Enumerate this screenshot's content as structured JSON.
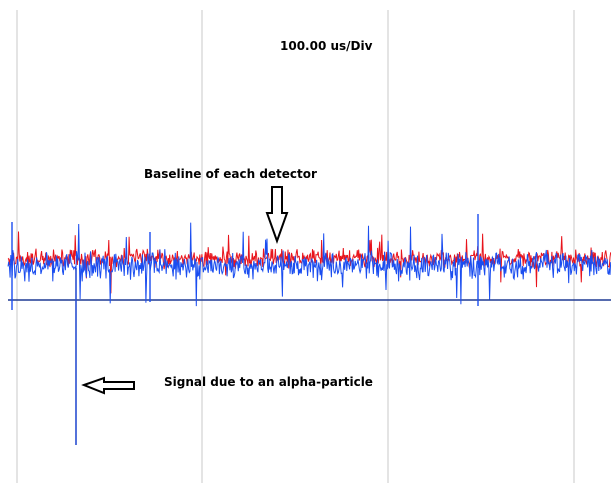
{
  "chart_data": {
    "type": "line",
    "timebase": "100.00 us/Div",
    "series": [
      {
        "color": "#e8141c",
        "level": 0.02,
        "amplitude": 0.08
      },
      {
        "color": "#1a4df0",
        "level": -0.02,
        "amplitude": 0.12
      }
    ],
    "annotations": [
      {
        "text": "Baseline of each detector",
        "arrow": "down"
      },
      {
        "text": "Signal due to an alpha-particle",
        "arrow": "left"
      }
    ],
    "grid": true
  },
  "colors": {
    "grid": "#c8c8c8",
    "reference_line": "#1f3a93",
    "pulse": "#2a4fd0"
  }
}
